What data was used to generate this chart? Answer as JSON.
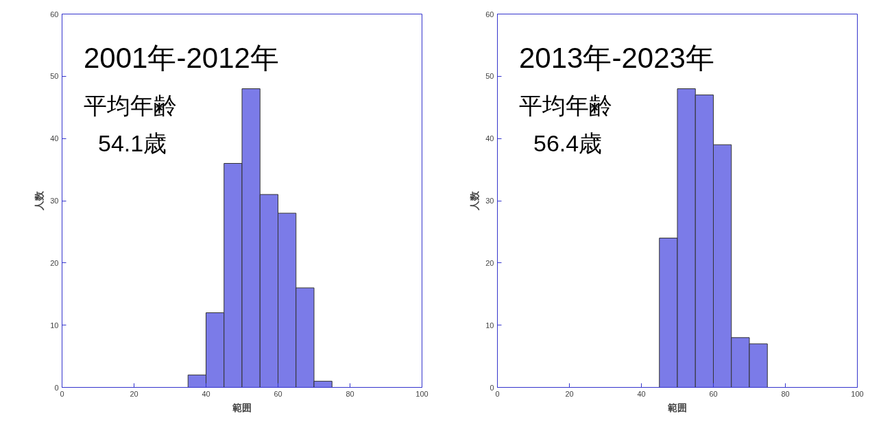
{
  "chart_data": [
    {
      "type": "histogram",
      "title": "2001年-2012年",
      "annotations": [
        "平均年齢",
        "54.1歳"
      ],
      "xlabel": "範囲",
      "ylabel": "人数",
      "bins": [
        35,
        40,
        45,
        50,
        55,
        60,
        65,
        70,
        75
      ],
      "values": [
        2,
        12,
        36,
        48,
        31,
        28,
        16,
        1
      ],
      "color": "#7b7be8",
      "xlim": [
        0,
        100
      ],
      "ylim": [
        0,
        60
      ],
      "xticks": [
        0,
        20,
        40,
        60,
        80,
        100
      ],
      "yticks": [
        0,
        10,
        20,
        30,
        40,
        50,
        60
      ],
      "grid": false
    },
    {
      "type": "histogram",
      "title": "2013年-2023年",
      "annotations": [
        "平均年齢",
        "56.4歳"
      ],
      "xlabel": "範囲",
      "ylabel": "人数",
      "bins": [
        45,
        50,
        55,
        60,
        65,
        70,
        75
      ],
      "values": [
        24,
        48,
        47,
        39,
        8,
        7
      ],
      "color": "#7b7be8",
      "xlim": [
        0,
        100
      ],
      "ylim": [
        0,
        60
      ],
      "xticks": [
        0,
        20,
        40,
        60,
        80,
        100
      ],
      "yticks": [
        0,
        10,
        20,
        30,
        40,
        50,
        60
      ],
      "grid": false
    }
  ]
}
